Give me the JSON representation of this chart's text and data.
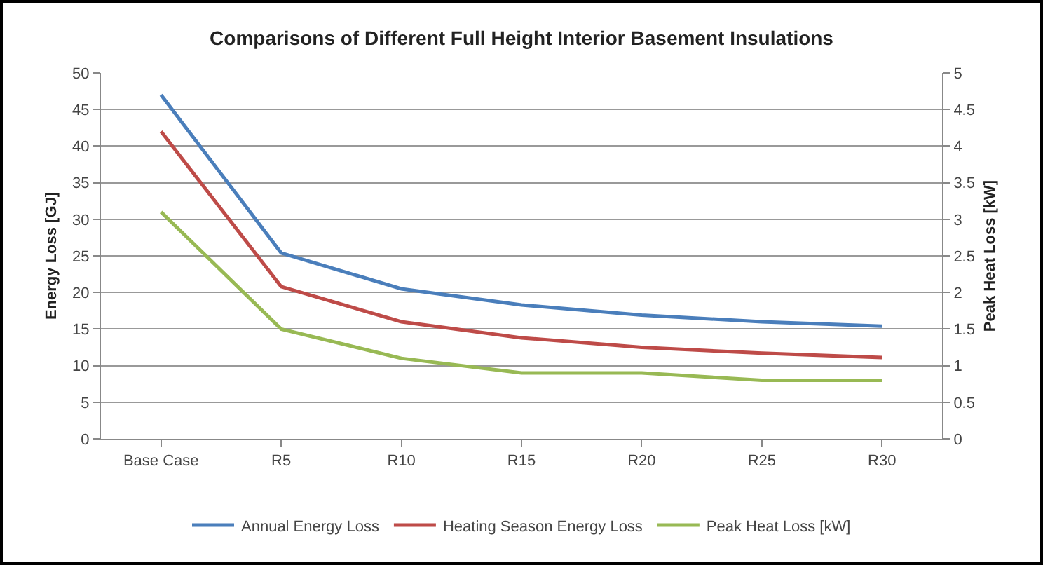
{
  "chart_data": {
    "type": "line",
    "title": "Comparisons of Different Full Height Interior Basement Insulations",
    "ylabel": "Energy Loss [GJ]",
    "y2label": "Peak Heat Loss [kW]",
    "categories": [
      "Base Case",
      "R5",
      "R10",
      "R15",
      "R20",
      "R25",
      "R30"
    ],
    "series": [
      {
        "name": "Annual Energy Loss",
        "color": "#4a7ebb",
        "values": [
          47,
          25.4,
          20.5,
          18.3,
          16.9,
          16,
          15.4
        ]
      },
      {
        "name": "Heating Season Energy Loss",
        "color": "#be4b48",
        "values": [
          42,
          20.8,
          16,
          13.8,
          12.5,
          11.7,
          11.1
        ]
      },
      {
        "name": "Peak Heat Loss [kW]",
        "color": "#98b954",
        "axis": "y2",
        "values": [
          3.1,
          1.5,
          1.1,
          0.9,
          0.9,
          0.8,
          0.8
        ]
      }
    ],
    "ylim": [
      0,
      50
    ],
    "yticks": [
      0,
      5,
      10,
      15,
      20,
      25,
      30,
      35,
      40,
      45,
      50
    ],
    "y2lim": [
      0,
      5
    ],
    "y2ticks": [
      0,
      0.5,
      1,
      1.5,
      2,
      2.5,
      3,
      3.5,
      4,
      4.5,
      5
    ],
    "grid": "y",
    "legend": "bottom",
    "marker": "none",
    "line_style": "solid"
  }
}
